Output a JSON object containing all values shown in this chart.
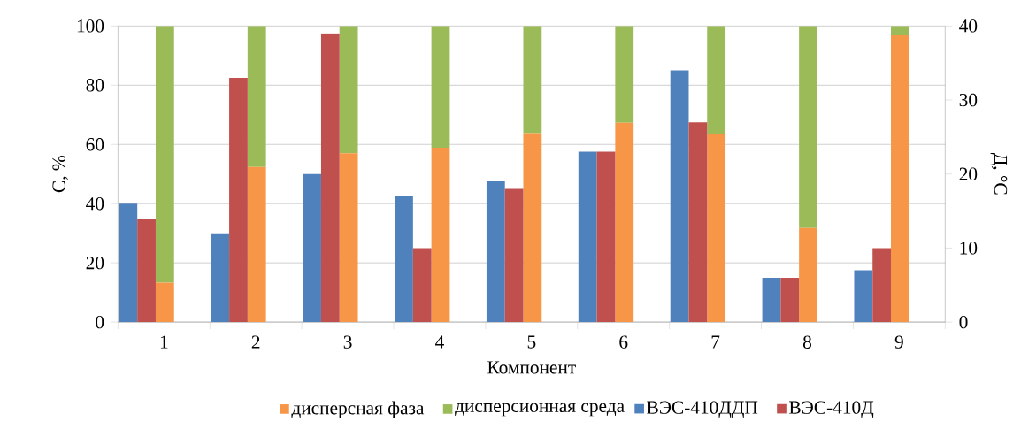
{
  "chart_data": [
    {
      "type": "bar",
      "xlabel": "Компонент",
      "ylabel": "С, %",
      "categories": [
        "1",
        "2",
        "3",
        "4",
        "5",
        "6",
        "7",
        "8",
        "9"
      ],
      "series": [
        {
          "name": "дисперсная фаза",
          "color": "#f79646",
          "values": [
            13.3,
            52.4,
            57,
            58.9,
            63.8,
            67.3,
            63.4,
            31.8,
            97
          ]
        },
        {
          "name": "дисперсионная среда",
          "color": "#9bbb59",
          "values": [
            86.7,
            47.6,
            43,
            41.1,
            36.2,
            32.7,
            36.6,
            68.2,
            3
          ]
        }
      ],
      "stacked": true,
      "ylim": [
        0,
        100
      ],
      "yticks": [
        0,
        20,
        40,
        60,
        80,
        100
      ],
      "grid": "y",
      "legend": "bottom"
    },
    {
      "type": "bar",
      "y2label": "Д, °C",
      "categories": [
        "1",
        "2",
        "3",
        "4",
        "5",
        "6",
        "7",
        "8",
        "9"
      ],
      "series": [
        {
          "name": "ВЭС-410ДДП",
          "color": "#4f81bd",
          "axis": "y2",
          "values": [
            16,
            12,
            20,
            17,
            19,
            23,
            34,
            6,
            7
          ]
        },
        {
          "name": "ВЭС-410Д",
          "color": "#c0504d",
          "axis": "y2",
          "values": [
            14,
            33,
            39,
            10,
            18,
            23,
            27,
            6,
            10
          ]
        }
      ],
      "y2lim": [
        0,
        40
      ],
      "y2ticks": [
        0,
        10,
        20,
        30,
        40
      ],
      "tick_labels": "y",
      "legend": "bottom"
    }
  ]
}
